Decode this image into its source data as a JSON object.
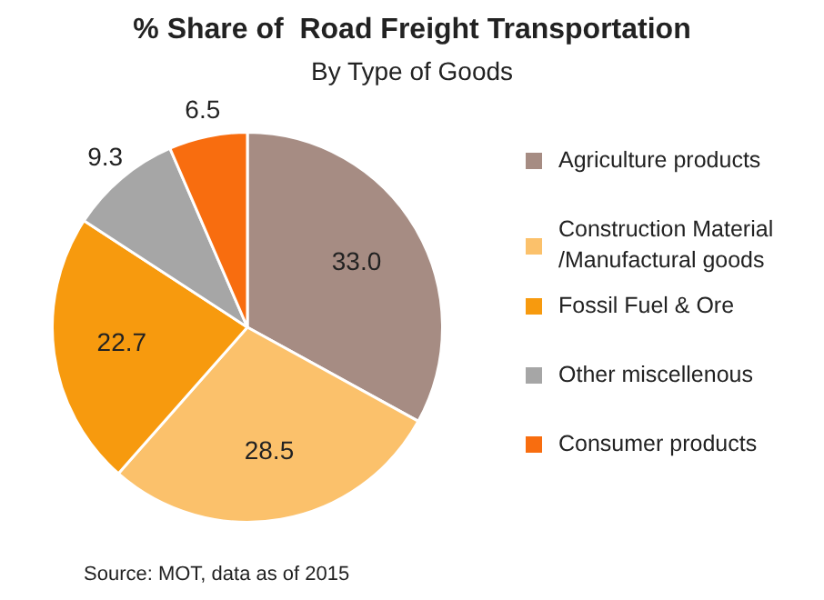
{
  "chart_data": {
    "type": "pie",
    "title": "% Share of  Road Freight Transportation",
    "subtitle": "By Type of Goods",
    "categories": [
      "Agriculture products",
      "Construction Material /Manufactural goods",
      "Fossil Fuel & Ore",
      "Other miscellenous",
      "Consumer products"
    ],
    "values": [
      33.0,
      28.5,
      22.7,
      9.3,
      6.5
    ],
    "colors": [
      "#a68c83",
      "#fbc16b",
      "#f79a0e",
      "#a6a6a6",
      "#f86d0f"
    ],
    "value_labels": [
      "33.0",
      "28.5",
      "22.7",
      "9.3",
      "6.5"
    ],
    "legend": "right",
    "annotations": [
      "Source: MOT, data as of 2015"
    ]
  }
}
